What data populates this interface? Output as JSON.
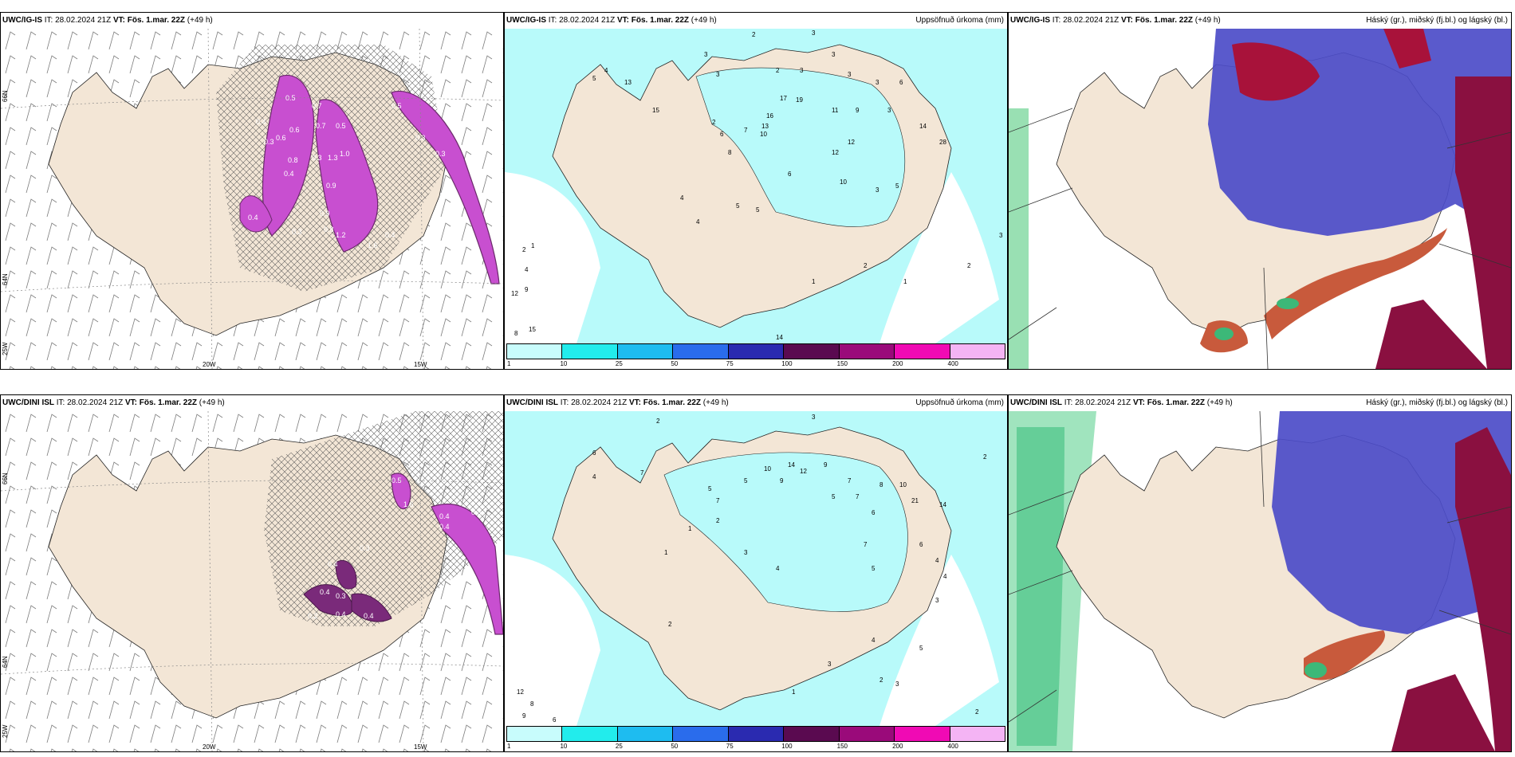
{
  "rows": [
    {
      "model": "UWC/IG-IS",
      "it_label": "IT:",
      "it_value": "28.02.2024 21Z",
      "vt_label": "VT:",
      "vt_value": "Fös. 1.mar. 22Z",
      "lead": "(+49 h)",
      "axis": {
        "lat_top": "66N",
        "lat_mid": "64N",
        "lon_left": "25W",
        "lon_mid": "20W",
        "lon_right": "15W"
      },
      "precip_values": [
        "2",
        "3",
        "3",
        "3",
        "3",
        "4",
        "5",
        "13",
        "2",
        "3",
        "3",
        "3",
        "6",
        "15",
        "17",
        "19",
        "11",
        "16",
        "13",
        "10",
        "2",
        "6",
        "8",
        "7",
        "12",
        "14",
        "28",
        "9",
        "3",
        "5",
        "4",
        "4",
        "5",
        "6",
        "3",
        "5",
        "12",
        "10",
        "2",
        "1",
        "1",
        "2",
        "4",
        "9",
        "8",
        "15",
        "12",
        "3",
        "14",
        "2",
        "5",
        "1"
      ],
      "snow_values": [
        "0.5",
        "0.4",
        "0.3",
        "0.6",
        "0.7",
        "0.6",
        "0.4",
        "0.3",
        "0.8",
        "0.9",
        "1.3",
        "0.9",
        "1.0",
        "0.7",
        "0.5",
        "0.4",
        "0.3",
        "0.5",
        "1.6",
        "0.4",
        "1.2",
        "0.8",
        "0.3",
        "0.3"
      ]
    },
    {
      "model": "UWC/DINI ISL",
      "it_label": "IT:",
      "it_value": "28.02.2024 21Z",
      "vt_label": "VT:",
      "vt_value": "Fös. 1.mar. 22Z",
      "lead": "(+49 h)",
      "axis": {
        "lat_top": "66N",
        "lat_mid": "64N",
        "lon_left": "25W",
        "lon_mid": "20W",
        "lon_right": "15W"
      },
      "precip_values": [
        "2",
        "3",
        "6",
        "4",
        "7",
        "1",
        "2",
        "5",
        "7",
        "5",
        "9",
        "10",
        "14",
        "12",
        "9",
        "7",
        "5",
        "7",
        "6",
        "8",
        "10",
        "21",
        "14",
        "6",
        "4",
        "4",
        "3",
        "2",
        "1",
        "12",
        "8",
        "9",
        "6",
        "3",
        "4",
        "7",
        "5",
        "3",
        "2",
        "5",
        "3",
        "1",
        "2",
        "2",
        "4"
      ],
      "snow_values": [
        "0.5",
        "1.6",
        "0.4",
        "0.3",
        "0.4",
        "0.4",
        "0.3",
        "0.4",
        "0.3",
        "0.2",
        "0.4",
        "0.4"
      ]
    }
  ],
  "precip_title": "Uppsöfnuð úrkoma (mm)",
  "cloud_title": "Háský (gr.), miðský (fj.bl.) og lágský (bl.)",
  "colorbar": {
    "ticks": [
      "1",
      "10",
      "25",
      "50",
      "75",
      "100",
      "150",
      "200",
      "400"
    ],
    "colors": [
      "#c8fcfc",
      "#22ecec",
      "#1ebcf0",
      "#2a6cec",
      "#2a2ab0",
      "#5a0a50",
      "#9a0a7a",
      "#f00ab4",
      "#f4b4f4"
    ]
  },
  "colors": {
    "land": "#f3e6d6",
    "snow_band": "#c84fd0",
    "snow_dark": "#6a2a6a",
    "precip_light": "#b8fafa",
    "precip_mid": "#5ae8f0",
    "high_cloud": "#4c4cc8",
    "mid_cloud": "#a8123a",
    "low_cloud": "#c85a3c",
    "green_cloud": "#3cb878"
  }
}
